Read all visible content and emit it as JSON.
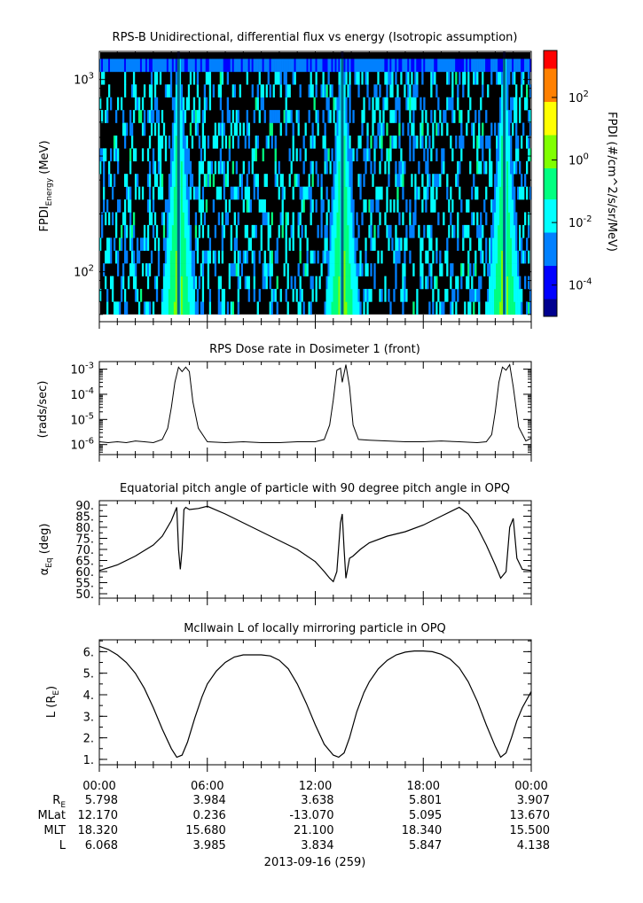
{
  "chart_data": [
    {
      "type": "heatmap",
      "title": "RPS-B  Unidirectional, differential flux vs energy (Isotropic assumption)",
      "ylabel_main": "FPDI",
      "ylabel_sub": "Energy",
      "ylabel_unit": " (MeV)",
      "yscale": "log",
      "ylim": [
        55,
        1400
      ],
      "yticks": [
        {
          "value": 100,
          "base": "10",
          "exp": "2"
        },
        {
          "value": 1000,
          "base": "10",
          "exp": "3"
        }
      ],
      "xlim_hours": [
        0,
        24
      ],
      "bright_bands_hours": [
        4.4,
        13.5,
        22.5
      ],
      "colorbar": {
        "label": "FPDI (#/cm^2/s/sr/MeV)",
        "scale": "log",
        "lim_log10": [
          -5,
          3.5
        ],
        "ticks": [
          {
            "value": -4,
            "base": "10",
            "exp": "-4"
          },
          {
            "value": -2,
            "base": "10",
            "exp": "-2"
          },
          {
            "value": 0,
            "base": "10",
            "exp": "0"
          },
          {
            "value": 2,
            "base": "10",
            "exp": "2"
          }
        ],
        "colors": [
          "#00008f",
          "#0000ff",
          "#0080ff",
          "#00ffff",
          "#00ff80",
          "#80ff00",
          "#ffff00",
          "#ff8000",
          "#ff0000"
        ]
      }
    },
    {
      "type": "line",
      "title": "RPS  Dose rate in Dosimeter 1 (front)",
      "ylabel": "(rads/sec)",
      "yscale": "log",
      "ylim": [
        4e-07,
        0.002
      ],
      "yticks": [
        {
          "value": 1e-06,
          "base": "10",
          "exp": "-6"
        },
        {
          "value": 1e-05,
          "base": "10",
          "exp": "-5"
        },
        {
          "value": 0.0001,
          "base": "10",
          "exp": "-4"
        },
        {
          "value": 0.001,
          "base": "10",
          "exp": "-3"
        }
      ],
      "x_hours": [
        0,
        0.5,
        1,
        1.5,
        2,
        2.5,
        3,
        3.5,
        3.8,
        4.0,
        4.2,
        4.4,
        4.6,
        4.8,
        5.0,
        5.2,
        5.5,
        6.0,
        7,
        8,
        9,
        10,
        11,
        12,
        12.5,
        12.8,
        13.0,
        13.2,
        13.4,
        13.5,
        13.7,
        13.9,
        14.1,
        14.4,
        15,
        16,
        17,
        18,
        19,
        20,
        21,
        21.5,
        21.8,
        22.0,
        22.2,
        22.4,
        22.6,
        22.8,
        23.0,
        23.3,
        23.7,
        24
      ],
      "values": [
        1.3e-06,
        1.2e-06,
        1.3e-06,
        1.2e-06,
        1.4e-06,
        1.3e-06,
        1.2e-06,
        1.6e-06,
        4.5e-06,
        3e-05,
        0.0003,
        0.0012,
        0.0008,
        0.0012,
        0.0008,
        5e-05,
        4.5e-06,
        1.3e-06,
        1.2e-06,
        1.3e-06,
        1.2e-06,
        1.2e-06,
        1.3e-06,
        1.3e-06,
        1.6e-06,
        6e-06,
        6e-05,
        0.0009,
        0.0011,
        0.0003,
        0.0015,
        0.0002,
        6e-06,
        1.6e-06,
        1.5e-06,
        1.4e-06,
        1.3e-06,
        1.3e-06,
        1.4e-06,
        1.3e-06,
        1.2e-06,
        1.3e-06,
        2.5e-06,
        2e-05,
        0.0003,
        0.0012,
        0.0009,
        0.0015,
        0.0002,
        5e-06,
        1.4e-06,
        1.8e-06
      ]
    },
    {
      "type": "line",
      "title": "Equatorial pitch angle of particle with 90 degree pitch angle in OPQ",
      "ylabel_main": "α",
      "ylabel_sub": "Eq",
      "ylabel_unit": " (deg)",
      "ylim": [
        48,
        92
      ],
      "yticks": [
        50,
        55,
        60,
        65,
        70,
        75,
        80,
        85,
        90
      ],
      "x_hours": [
        0,
        1,
        2,
        3,
        3.5,
        4.0,
        4.2,
        4.3,
        4.4,
        4.5,
        4.6,
        4.7,
        4.8,
        5.0,
        5.5,
        6.0,
        7,
        8,
        9,
        10,
        11,
        12,
        12.5,
        12.8,
        13.0,
        13.2,
        13.4,
        13.5,
        13.6,
        13.7,
        13.9,
        14.1,
        14.5,
        15,
        16,
        17,
        18,
        19,
        20,
        20.5,
        21,
        21.5,
        22,
        22.3,
        22.6,
        22.8,
        23.0,
        23.2,
        23.5,
        24
      ],
      "values": [
        60.5,
        63,
        67,
        72,
        76,
        83,
        87,
        89,
        70,
        61,
        70,
        88,
        89,
        88,
        88.5,
        89.5,
        86,
        82,
        78,
        74,
        70,
        64.5,
        60,
        57,
        55.5,
        60,
        82,
        86,
        70,
        57,
        66,
        67,
        70,
        73,
        76,
        78,
        81,
        85,
        89,
        86,
        80,
        72,
        63,
        57,
        60,
        80,
        84,
        66,
        61,
        60.5
      ]
    },
    {
      "type": "line",
      "title": "McIlwain L of locally mirroring particle in OPQ",
      "ylabel_main": "L (R",
      "ylabel_sub": "E",
      "ylabel_unit": ")",
      "ylim": [
        0.75,
        6.55
      ],
      "yticks": [
        1,
        2,
        3,
        4,
        5,
        6
      ],
      "x_hours": [
        0,
        0.5,
        1,
        1.5,
        2,
        2.5,
        3,
        3.5,
        4,
        4.3,
        4.6,
        4.9,
        5.3,
        5.7,
        6,
        6.5,
        7,
        7.5,
        8,
        8.5,
        9,
        9.5,
        10,
        10.5,
        11,
        11.5,
        12,
        12.5,
        13,
        13.3,
        13.6,
        13.9,
        14.3,
        14.7,
        15,
        15.5,
        16,
        16.5,
        17,
        17.5,
        18,
        18.5,
        19,
        19.5,
        20,
        20.5,
        21,
        21.5,
        22,
        22.3,
        22.6,
        22.9,
        23.2,
        23.5,
        24
      ],
      "values": [
        6.25,
        6.1,
        5.85,
        5.5,
        5.0,
        4.3,
        3.4,
        2.4,
        1.5,
        1.1,
        1.2,
        1.8,
        2.9,
        3.9,
        4.5,
        5.1,
        5.5,
        5.75,
        5.85,
        5.85,
        5.85,
        5.8,
        5.6,
        5.2,
        4.5,
        3.6,
        2.6,
        1.7,
        1.2,
        1.1,
        1.3,
        2.0,
        3.2,
        4.1,
        4.6,
        5.2,
        5.6,
        5.85,
        5.98,
        6.03,
        6.03,
        6.0,
        5.88,
        5.65,
        5.25,
        4.6,
        3.7,
        2.6,
        1.6,
        1.1,
        1.3,
        2.0,
        2.8,
        3.4,
        4.15
      ]
    }
  ],
  "xaxis": {
    "ticks": [
      "00:00",
      "06:00",
      "12:00",
      "18:00",
      "00:00"
    ],
    "date_label": "2013-09-16 (259)"
  },
  "ephemeris": {
    "rows": [
      {
        "label_main": "R",
        "label_sub": "E",
        "values": [
          "5.798",
          "3.984",
          "3.638",
          "5.801",
          "3.907"
        ]
      },
      {
        "label_main": "MLat",
        "label_sub": "",
        "values": [
          "12.170",
          "0.236",
          "-13.070",
          "5.095",
          "13.670"
        ]
      },
      {
        "label_main": "MLT",
        "label_sub": "",
        "values": [
          "18.320",
          "15.680",
          "21.100",
          "18.340",
          "15.500"
        ]
      },
      {
        "label_main": "L",
        "label_sub": "",
        "values": [
          "6.068",
          "3.985",
          "3.834",
          "5.847",
          "4.138"
        ]
      }
    ]
  }
}
